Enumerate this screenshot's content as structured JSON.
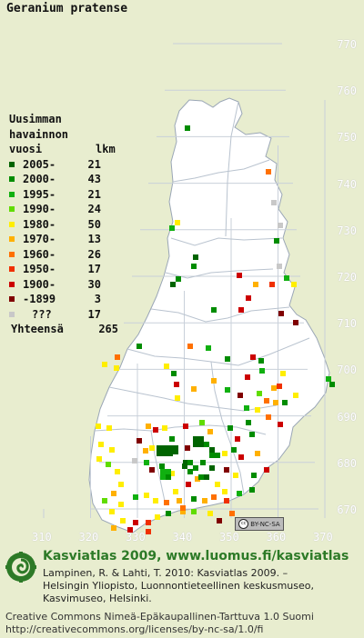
{
  "species": "Geranium pratense",
  "lat_labels": [
    "770",
    "760",
    "750",
    "740",
    "730",
    "720",
    "710",
    "700",
    "690",
    "680",
    "670"
  ],
  "lon_labels": [
    "310",
    "320",
    "330",
    "340",
    "350",
    "360",
    "370"
  ],
  "legend": {
    "title_lines": [
      "Uusimman",
      "havainnon"
    ],
    "col_year": "vuosi",
    "col_count": "lkm",
    "entries": [
      {
        "label": "2005-",
        "count": "21",
        "color": "#006400"
      },
      {
        "label": "2000-",
        "count": "43",
        "color": "#008c00"
      },
      {
        "label": "1995-",
        "count": "21",
        "color": "#10b010"
      },
      {
        "label": "1990-",
        "count": "24",
        "color": "#60dc00"
      },
      {
        "label": "1980-",
        "count": "50",
        "color": "#ffee00"
      },
      {
        "label": "1970-",
        "count": "13",
        "color": "#ffb000"
      },
      {
        "label": "1960-",
        "count": "26",
        "color": "#ff7000"
      },
      {
        "label": "1950-",
        "count": "17",
        "color": "#f03000"
      },
      {
        "label": "1900-",
        "count": "30",
        "color": "#cc0000"
      },
      {
        "label": "-1899",
        "count": "3",
        "color": "#800000"
      },
      {
        "label": "???",
        "count": "17",
        "color": "#c8c8c8"
      }
    ],
    "total_label": "Yhteensä",
    "total_count": "265"
  },
  "cc_badge": "BY-NC-SA",
  "atlas_line": "Kasviatlas 2009, www.luomus.fi/kasviatlas",
  "citation": [
    "Lampinen, R. & Lahti, T. 2010: Kasviatlas 2009. –",
    "Helsingin Yliopisto, Luonnontieteellinen keskusmuseo,",
    "Kasvimuseo, Helsinki."
  ],
  "license": [
    "Creative Commons Nimeä-Epäkaupallinen-Tarttuva 1.0 Suomi",
    "http://creativecommons.org/licenses/by-nc-sa/1.0/fi"
  ]
}
